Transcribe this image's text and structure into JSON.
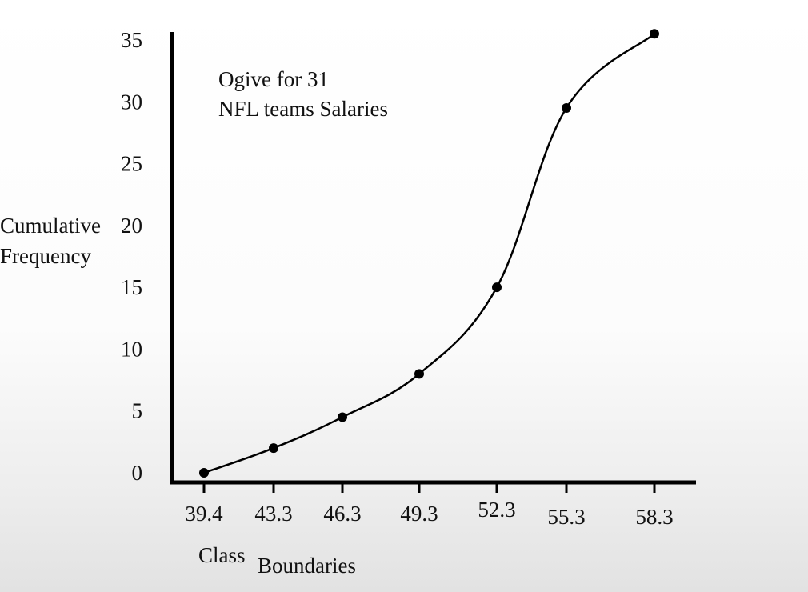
{
  "chart_data": {
    "type": "line",
    "title_lines": [
      "Ogive for 31",
      "NFL teams Salaries"
    ],
    "ylabel_lines": [
      "Cumulative",
      "Frequency"
    ],
    "xlabel_parts": [
      "Class",
      "Boundaries"
    ],
    "ylim": [
      0,
      35
    ],
    "yticks": [
      "0",
      "5",
      "10",
      "15",
      "20",
      "25",
      "30",
      "35"
    ],
    "x": [
      "39.4",
      "43.3",
      "46.3",
      "49.3",
      "52.3",
      "55.3",
      "58.3"
    ],
    "values": [
      0,
      2,
      4.5,
      8,
      15,
      29.5,
      35.5
    ],
    "grid": false,
    "legend": "none"
  }
}
